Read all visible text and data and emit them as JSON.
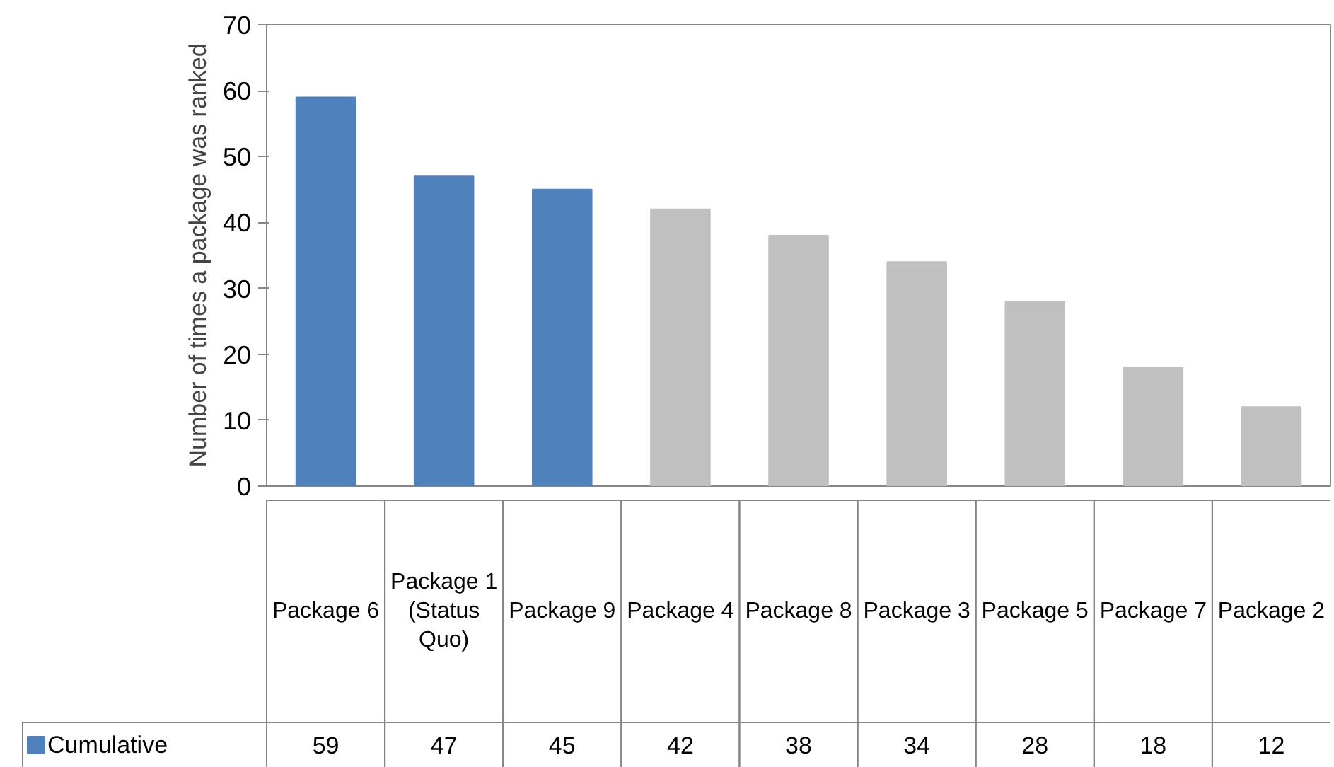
{
  "chart_data": {
    "type": "bar",
    "ylabel": "Number of times a package was ranked",
    "categories": [
      "Package 6",
      "Package 1 (Status Quo)",
      "Package 9",
      "Package 4",
      "Package 8",
      "Package 3",
      "Package 5",
      "Package 7",
      "Package 2"
    ],
    "series": [
      {
        "name": "Cumulative",
        "color": "#4f81bd",
        "colors": [
          "#4f81bd",
          "#4f81bd",
          "#4f81bd",
          "#c0c0c0",
          "#c0c0c0",
          "#c0c0c0",
          "#c0c0c0",
          "#c0c0c0",
          "#c0c0c0"
        ],
        "values": [
          59,
          47,
          45,
          42,
          38,
          34,
          28,
          18,
          12
        ]
      }
    ],
    "ylim": [
      0,
      70
    ],
    "yticks": [
      0,
      10,
      20,
      30,
      40,
      50,
      60,
      70
    ],
    "grid": false,
    "legend": "bottom",
    "data_labels": true
  }
}
